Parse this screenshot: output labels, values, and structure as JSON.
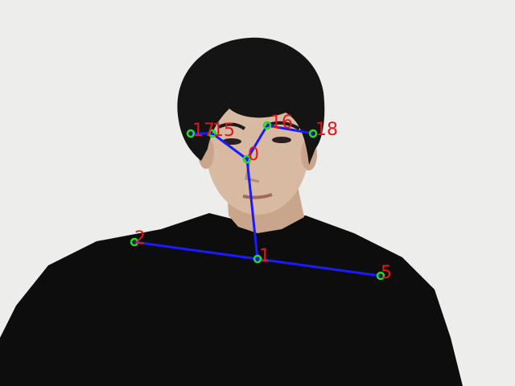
{
  "colors": {
    "background": "#ededec",
    "skeleton_line": "#1a1aff",
    "keypoint": "#22dd22",
    "label": "#e01818",
    "hair": "#141414",
    "skin": "#d8b9a2",
    "shirt": "#0d0d0d"
  },
  "keypoints": [
    {
      "id": "0",
      "label": "0"
    },
    {
      "id": "1",
      "label": "1"
    },
    {
      "id": "2",
      "label": "2"
    },
    {
      "id": "5",
      "label": "5"
    },
    {
      "id": "15",
      "label": "15"
    },
    {
      "id": "16",
      "label": "16"
    },
    {
      "id": "17",
      "label": "17"
    },
    {
      "id": "18",
      "label": "18"
    }
  ],
  "edges": [
    [
      "1",
      "0"
    ],
    [
      "1",
      "2"
    ],
    [
      "1",
      "5"
    ],
    [
      "0",
      "15"
    ],
    [
      "15",
      "17"
    ],
    [
      "0",
      "16"
    ],
    [
      "16",
      "18"
    ]
  ]
}
